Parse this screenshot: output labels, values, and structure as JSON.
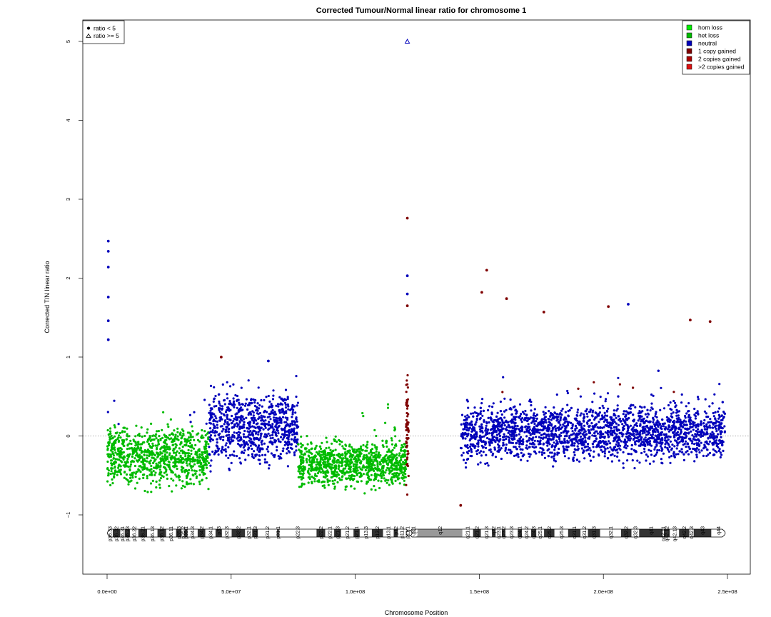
{
  "chart_data": {
    "type": "scatter",
    "title": "Corrected Tumour/Normal linear ratio for chromosome  1",
    "xlabel": "Chromosome Position",
    "ylabel": "Corrected T/N linear ratio",
    "xlim": [
      0,
      250000000
    ],
    "ylim": [
      -1.8,
      5.25
    ],
    "x_ticks": [
      0,
      50000000,
      100000000,
      150000000,
      200000000,
      250000000
    ],
    "x_tick_labels": [
      "0.0e+00",
      "5.0e+07",
      "1.0e+08",
      "1.5e+08",
      "2.0e+08",
      "2.5e+08"
    ],
    "y_ticks": [
      -1,
      0,
      1,
      2,
      3,
      4,
      5
    ],
    "y_tick_labels": [
      "−1",
      "0",
      "1",
      "2",
      "3",
      "4",
      "5"
    ],
    "reference_line_y": 0,
    "shape_legend": {
      "placement": "top-left",
      "entries": [
        {
          "label": "ratio < 5",
          "shape": "circle"
        },
        {
          "label": "ratio >= 5",
          "shape": "triangle"
        }
      ]
    },
    "state_legend": {
      "placement": "top-right",
      "entries": [
        {
          "label": "hom loss",
          "color": "#00ee00"
        },
        {
          "label": "het loss",
          "color": "#00bb00"
        },
        {
          "label": "neutral",
          "color": "#0000bb"
        },
        {
          "label": "1 copy gained",
          "color": "#7f0000"
        },
        {
          "label": "2 copies gained",
          "color": "#aa0000"
        },
        {
          "label": ">2 copies gained",
          "color": "#dd1111"
        }
      ]
    },
    "segments": [
      {
        "state": "het loss",
        "x_start": 0,
        "x_end": 41000000,
        "mean": -0.25,
        "spread": 0.32
      },
      {
        "state": "neutral",
        "x_start": 41000000,
        "x_end": 77000000,
        "mean": 0.12,
        "spread": 0.38
      },
      {
        "state": "het loss",
        "x_start": 77000000,
        "x_end": 120500000,
        "mean": -0.35,
        "spread": 0.25
      },
      {
        "state": "1 copy gained",
        "x_start": 120500000,
        "x_end": 121500000,
        "mean": 0.1,
        "spread": 0.55
      },
      {
        "state": "neutral",
        "x_start": 142500000,
        "x_end": 249000000,
        "mean": 0.05,
        "spread": 0.3
      }
    ],
    "outliers": [
      {
        "x": 500000,
        "y": 2.47,
        "state": "neutral"
      },
      {
        "x": 500000,
        "y": 2.34,
        "state": "neutral"
      },
      {
        "x": 500000,
        "y": 2.14,
        "state": "neutral"
      },
      {
        "x": 500000,
        "y": 1.76,
        "state": "neutral"
      },
      {
        "x": 500000,
        "y": 1.46,
        "state": "neutral"
      },
      {
        "x": 500000,
        "y": 1.22,
        "state": "neutral"
      },
      {
        "x": 121000000,
        "y": 5.0,
        "state": "neutral",
        "shape": "triangle"
      },
      {
        "x": 121000000,
        "y": 2.76,
        "state": "1 copy gained"
      },
      {
        "x": 121000000,
        "y": 2.03,
        "state": "neutral"
      },
      {
        "x": 121000000,
        "y": 1.8,
        "state": "neutral"
      },
      {
        "x": 121000000,
        "y": 1.65,
        "state": "1 copy gained"
      },
      {
        "x": 153000000,
        "y": 2.1,
        "state": "1 copy gained"
      },
      {
        "x": 151000000,
        "y": 1.82,
        "state": "1 copy gained"
      },
      {
        "x": 161000000,
        "y": 1.74,
        "state": "1 copy gained"
      },
      {
        "x": 176000000,
        "y": 1.57,
        "state": "1 copy gained"
      },
      {
        "x": 210000000,
        "y": 1.67,
        "state": "neutral"
      },
      {
        "x": 202000000,
        "y": 1.64,
        "state": "1 copy gained"
      },
      {
        "x": 235000000,
        "y": 1.47,
        "state": "1 copy gained"
      },
      {
        "x": 243000000,
        "y": 1.45,
        "state": "1 copy gained"
      },
      {
        "x": 142500000,
        "y": -0.88,
        "state": "1 copy gained"
      },
      {
        "x": 46000000,
        "y": 1.0,
        "state": "1 copy gained"
      },
      {
        "x": 65000000,
        "y": 0.95,
        "state": "neutral"
      }
    ],
    "cytobands": [
      {
        "name": "p36.33",
        "start": 0,
        "end": 2300000,
        "stain": "gneg"
      },
      {
        "name": "p36.32",
        "start": 2300000,
        "end": 5300000,
        "stain": "gpos25"
      },
      {
        "name": "p36.31",
        "start": 5300000,
        "end": 7100000,
        "stain": "gneg"
      },
      {
        "name": "p36.23",
        "start": 7100000,
        "end": 9200000,
        "stain": "gpos25"
      },
      {
        "name": "p36.22",
        "start": 9200000,
        "end": 12600000,
        "stain": "gneg"
      },
      {
        "name": "p36.21",
        "start": 12600000,
        "end": 16100000,
        "stain": "gpos50"
      },
      {
        "name": "p36.13",
        "start": 16100000,
        "end": 20300000,
        "stain": "gneg"
      },
      {
        "name": "p36.12",
        "start": 20300000,
        "end": 23800000,
        "stain": "gpos25"
      },
      {
        "name": "p36.11",
        "start": 23800000,
        "end": 27800000,
        "stain": "gneg"
      },
      {
        "name": "p35.3",
        "start": 27800000,
        "end": 30000000,
        "stain": "gpos25"
      },
      {
        "name": "p35.2",
        "start": 30000000,
        "end": 31200000,
        "stain": "gneg"
      },
      {
        "name": "p35.1",
        "start": 31200000,
        "end": 32400000,
        "stain": "gpos25"
      },
      {
        "name": "p34.3",
        "start": 32400000,
        "end": 36500000,
        "stain": "gneg"
      },
      {
        "name": "p34.2",
        "start": 36500000,
        "end": 39600000,
        "stain": "gpos25"
      },
      {
        "name": "p34.1",
        "start": 39600000,
        "end": 43700000,
        "stain": "gneg"
      },
      {
        "name": "p33",
        "start": 43700000,
        "end": 46300000,
        "stain": "gpos75"
      },
      {
        "name": "p32.3",
        "start": 46300000,
        "end": 50200000,
        "stain": "gneg"
      },
      {
        "name": "p32.2",
        "start": 50200000,
        "end": 55600000,
        "stain": "gpos50"
      },
      {
        "name": "p32.1",
        "start": 55600000,
        "end": 58500000,
        "stain": "gneg"
      },
      {
        "name": "p31.3",
        "start": 58500000,
        "end": 60800000,
        "stain": "gpos50"
      },
      {
        "name": "p31.2",
        "start": 60800000,
        "end": 68500000,
        "stain": "gneg"
      },
      {
        "name": "p31.1",
        "start": 68500000,
        "end": 69300000,
        "stain": "gpos100"
      },
      {
        "name": "p22.3",
        "start": 69300000,
        "end": 84400000,
        "stain": "gneg"
      },
      {
        "name": "p22.2",
        "start": 84400000,
        "end": 87900000,
        "stain": "gpos75"
      },
      {
        "name": "p22.1",
        "start": 87900000,
        "end": 91500000,
        "stain": "gneg"
      },
      {
        "name": "p21.3",
        "start": 91500000,
        "end": 94300000,
        "stain": "gpos75"
      },
      {
        "name": "p21.2",
        "start": 94300000,
        "end": 99300000,
        "stain": "gneg"
      },
      {
        "name": "p21.1",
        "start": 99300000,
        "end": 101800000,
        "stain": "gpos100"
      },
      {
        "name": "p13.3",
        "start": 101800000,
        "end": 106700000,
        "stain": "gneg"
      },
      {
        "name": "p13.2",
        "start": 106700000,
        "end": 111200000,
        "stain": "gpos50"
      },
      {
        "name": "p13.1",
        "start": 111200000,
        "end": 115500000,
        "stain": "gneg"
      },
      {
        "name": "p12",
        "start": 115500000,
        "end": 117200000,
        "stain": "gpos50"
      },
      {
        "name": "p11.2",
        "start": 117200000,
        "end": 120400000,
        "stain": "gneg"
      },
      {
        "name": "p11.1",
        "start": 120400000,
        "end": 121700000,
        "stain": "acen"
      },
      {
        "name": "q11",
        "start": 121700000,
        "end": 125100000,
        "stain": "acen"
      },
      {
        "name": "q12",
        "start": 125100000,
        "end": 143200000,
        "stain": "gvar"
      },
      {
        "name": "q21.1",
        "start": 143200000,
        "end": 147500000,
        "stain": "gneg"
      },
      {
        "name": "q21.2",
        "start": 147500000,
        "end": 150600000,
        "stain": "gpos50"
      },
      {
        "name": "q21.3",
        "start": 150600000,
        "end": 155100000,
        "stain": "gneg"
      },
      {
        "name": "q22",
        "start": 155100000,
        "end": 156600000,
        "stain": "gpos50"
      },
      {
        "name": "q23.1",
        "start": 156600000,
        "end": 159100000,
        "stain": "gneg"
      },
      {
        "name": "q23.2",
        "start": 159100000,
        "end": 160500000,
        "stain": "gpos50"
      },
      {
        "name": "q23.3",
        "start": 160500000,
        "end": 165500000,
        "stain": "gneg"
      },
      {
        "name": "q24.1",
        "start": 165500000,
        "end": 167200000,
        "stain": "gpos50"
      },
      {
        "name": "q24.2",
        "start": 167200000,
        "end": 170900000,
        "stain": "gneg"
      },
      {
        "name": "q24.3",
        "start": 170900000,
        "end": 173000000,
        "stain": "gpos75"
      },
      {
        "name": "q25.1",
        "start": 173000000,
        "end": 176100000,
        "stain": "gneg"
      },
      {
        "name": "q25.2",
        "start": 176100000,
        "end": 180300000,
        "stain": "gpos50"
      },
      {
        "name": "q25.3",
        "start": 180300000,
        "end": 185800000,
        "stain": "gneg"
      },
      {
        "name": "q31.1",
        "start": 185800000,
        "end": 190800000,
        "stain": "gpos100"
      },
      {
        "name": "q31.2",
        "start": 190800000,
        "end": 193800000,
        "stain": "gneg"
      },
      {
        "name": "q31.3",
        "start": 193800000,
        "end": 198700000,
        "stain": "gpos100"
      },
      {
        "name": "q32.1",
        "start": 198700000,
        "end": 207100000,
        "stain": "gneg"
      },
      {
        "name": "q32.2",
        "start": 207100000,
        "end": 211300000,
        "stain": "gpos25"
      },
      {
        "name": "q32.3",
        "start": 211300000,
        "end": 214400000,
        "stain": "gneg"
      },
      {
        "name": "q41",
        "start": 214400000,
        "end": 223900000,
        "stain": "gpos100"
      },
      {
        "name": "q42.11",
        "start": 223900000,
        "end": 224400000,
        "stain": "gneg"
      },
      {
        "name": "q42.12",
        "start": 224400000,
        "end": 226800000,
        "stain": "gpos25"
      },
      {
        "name": "q42.13",
        "start": 226800000,
        "end": 230500000,
        "stain": "gneg"
      },
      {
        "name": "q42.2",
        "start": 230500000,
        "end": 234600000,
        "stain": "gpos50"
      },
      {
        "name": "q42.3",
        "start": 234600000,
        "end": 236400000,
        "stain": "gneg"
      },
      {
        "name": "q43",
        "start": 236400000,
        "end": 243500000,
        "stain": "gpos75"
      },
      {
        "name": "q44",
        "start": 243500000,
        "end": 249250000,
        "stain": "gneg"
      }
    ]
  }
}
